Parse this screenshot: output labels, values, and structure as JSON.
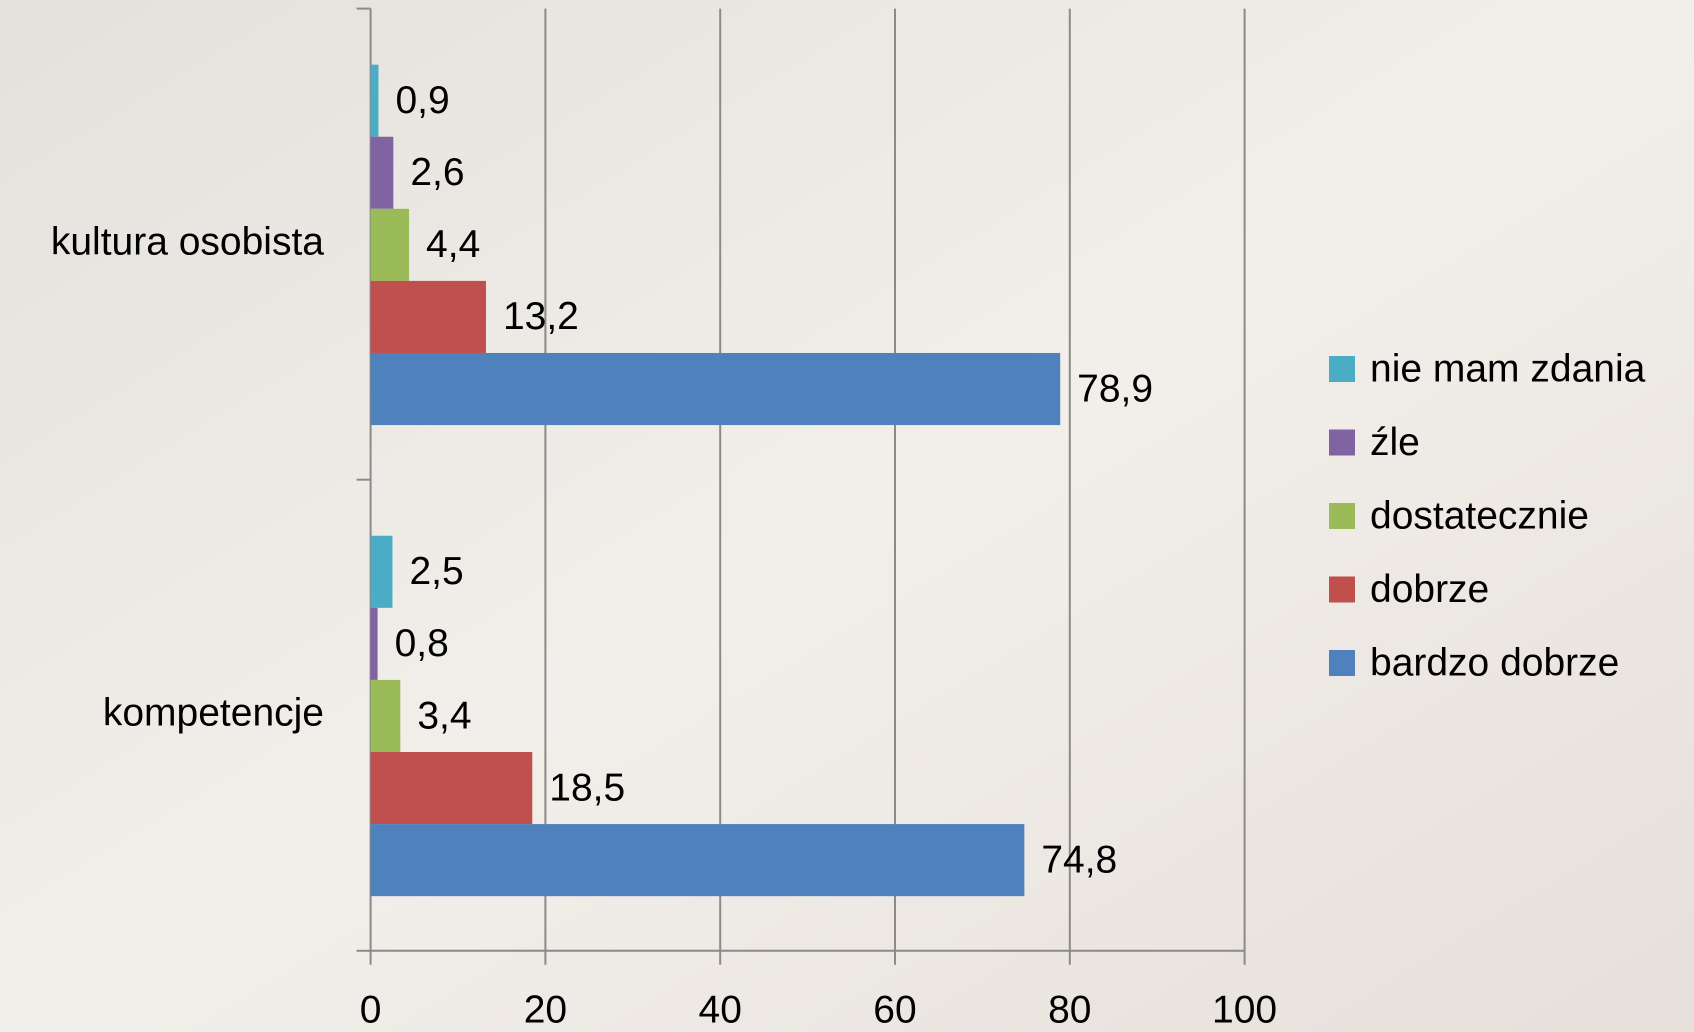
{
  "chart_data": {
    "type": "bar",
    "orientation": "horizontal",
    "categories": [
      "kultura osobista",
      "kompetencje"
    ],
    "series": [
      {
        "name": "nie mam zdania",
        "color": "#4bacc6",
        "values": [
          0.9,
          2.5
        ],
        "value_labels": [
          "0,9",
          "2,5"
        ]
      },
      {
        "name": "źle",
        "color": "#8064a2",
        "values": [
          2.6,
          0.8
        ],
        "value_labels": [
          "2,6",
          "0,8"
        ]
      },
      {
        "name": "dostatecznie",
        "color": "#9bbb59",
        "values": [
          4.4,
          3.4
        ],
        "value_labels": [
          "4,4",
          "3,4"
        ]
      },
      {
        "name": "dobrze",
        "color": "#c0504d",
        "values": [
          13.2,
          18.5
        ],
        "value_labels": [
          "13,2",
          "18,5"
        ]
      },
      {
        "name": "bardzo dobrze",
        "color": "#4f81bd",
        "values": [
          78.9,
          74.8
        ],
        "value_labels": [
          "78,9",
          "74,8"
        ]
      }
    ],
    "xlim": [
      0,
      100
    ],
    "xticks": [
      0,
      20,
      40,
      60,
      80,
      100
    ],
    "grid": true,
    "legend": "right"
  }
}
